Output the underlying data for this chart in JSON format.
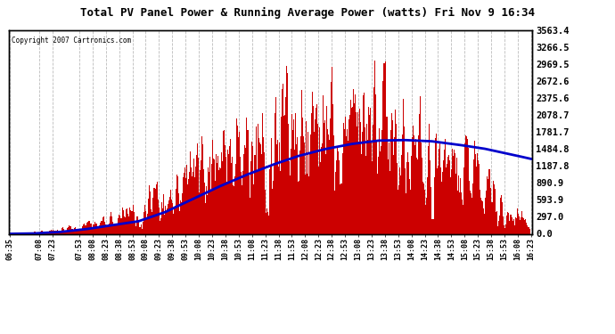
{
  "title": "Total PV Panel Power & Running Average Power (watts) Fri Nov 9 16:34",
  "copyright": "Copyright 2007 Cartronics.com",
  "background_color": "#ffffff",
  "plot_bg_color": "#ffffff",
  "grid_color": "#bbbbbb",
  "bar_color": "#cc0000",
  "line_color": "#0000cc",
  "ytick_labels": [
    "0.0",
    "297.0",
    "593.9",
    "890.9",
    "1187.8",
    "1484.8",
    "1781.7",
    "2078.7",
    "2375.6",
    "2672.6",
    "2969.5",
    "3266.5",
    "3563.4"
  ],
  "ytick_values": [
    0.0,
    297.0,
    593.9,
    890.9,
    1187.8,
    1484.8,
    1781.7,
    2078.7,
    2375.6,
    2672.6,
    2969.5,
    3266.5,
    3563.4
  ],
  "ymax": 3563.4,
  "ymin": 0.0,
  "xtick_labels": [
    "06:35",
    "07:08",
    "07:23",
    "07:53",
    "08:08",
    "08:23",
    "08:38",
    "08:53",
    "09:08",
    "09:23",
    "09:38",
    "09:53",
    "10:08",
    "10:23",
    "10:38",
    "10:53",
    "11:08",
    "11:23",
    "11:38",
    "11:53",
    "12:08",
    "12:23",
    "12:38",
    "12:53",
    "13:08",
    "13:23",
    "13:38",
    "13:53",
    "14:08",
    "14:23",
    "14:38",
    "14:53",
    "15:08",
    "15:23",
    "15:38",
    "15:53",
    "16:08",
    "16:23"
  ]
}
